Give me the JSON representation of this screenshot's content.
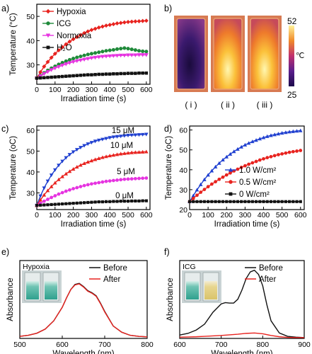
{
  "chart_data": [
    {
      "panel": "a)",
      "type": "line",
      "xlabel": "Irradiation time (s)",
      "ylabel": "Temperature (°C)",
      "xlim": [
        0,
        620
      ],
      "ylim": [
        22,
        55
      ],
      "xticks": [
        "0",
        "100",
        "200",
        "300",
        "400",
        "500",
        "600"
      ],
      "yticks": [
        "30",
        "40",
        "50"
      ],
      "legend_position": "top-left",
      "series": [
        {
          "name": "Hypoxia",
          "color": "#e8231f",
          "marker": "diamond",
          "x": [
            0,
            20,
            40,
            60,
            80,
            100,
            120,
            140,
            160,
            180,
            200,
            220,
            240,
            260,
            280,
            300,
            320,
            340,
            360,
            380,
            400,
            420,
            440,
            460,
            480,
            500,
            520,
            540,
            560,
            580,
            600
          ],
          "y": [
            24.5,
            27.0,
            29.3,
            31.2,
            33.0,
            34.6,
            36.0,
            37.3,
            38.5,
            39.6,
            40.6,
            41.5,
            42.3,
            43.1,
            43.8,
            44.4,
            44.9,
            45.4,
            45.8,
            46.2,
            46.5,
            46.8,
            47.1,
            47.3,
            47.5,
            47.7,
            47.8,
            47.9,
            48.0,
            48.1,
            48.2
          ]
        },
        {
          "name": "ICG",
          "color": "#1f8a3a",
          "marker": "circle",
          "x": [
            0,
            20,
            40,
            60,
            80,
            100,
            120,
            140,
            160,
            180,
            200,
            220,
            240,
            260,
            280,
            300,
            320,
            340,
            360,
            380,
            400,
            420,
            440,
            460,
            480,
            500,
            520,
            540,
            560,
            580,
            600
          ],
          "y": [
            24.5,
            25.6,
            26.7,
            27.7,
            28.6,
            29.4,
            30.2,
            30.9,
            31.5,
            32.1,
            32.6,
            33.1,
            33.5,
            33.9,
            34.3,
            34.6,
            34.9,
            35.2,
            35.5,
            35.8,
            36.0,
            36.2,
            36.5,
            36.7,
            36.9,
            36.7,
            36.4,
            36.1,
            35.8,
            35.6,
            35.5
          ]
        },
        {
          "name": "Normoxia",
          "color": "#e633e0",
          "marker": "triangle-down",
          "x": [
            0,
            20,
            40,
            60,
            80,
            100,
            120,
            140,
            160,
            180,
            200,
            220,
            240,
            260,
            280,
            300,
            320,
            340,
            360,
            380,
            400,
            420,
            440,
            460,
            480,
            500,
            520,
            540,
            560,
            580,
            600
          ],
          "y": [
            24.5,
            25.4,
            26.3,
            27.1,
            27.9,
            28.6,
            29.2,
            29.8,
            30.3,
            30.8,
            31.2,
            31.6,
            31.9,
            32.2,
            32.5,
            32.8,
            33.0,
            33.2,
            33.4,
            33.5,
            33.6,
            33.7,
            33.8,
            33.9,
            33.9,
            34.0,
            34.0,
            34.0,
            34.1,
            34.1,
            34.1
          ]
        },
        {
          "name": "H₂O",
          "color": "#111111",
          "marker": "square",
          "x": [
            0,
            20,
            40,
            60,
            80,
            100,
            120,
            140,
            160,
            180,
            200,
            220,
            240,
            260,
            280,
            300,
            320,
            340,
            360,
            380,
            400,
            420,
            440,
            460,
            480,
            500,
            520,
            540,
            560,
            580,
            600
          ],
          "y": [
            24.5,
            24.6,
            24.7,
            24.8,
            24.9,
            25.0,
            25.1,
            25.2,
            25.3,
            25.4,
            25.5,
            25.6,
            25.7,
            25.8,
            25.9,
            25.9,
            26.0,
            26.1,
            26.1,
            26.2,
            26.2,
            26.3,
            26.3,
            26.4,
            26.4,
            26.5,
            26.5,
            26.5,
            26.6,
            26.6,
            26.6
          ]
        }
      ]
    },
    {
      "panel": "b)",
      "type": "heatmap",
      "sample_labels": [
        "( i )",
        "( ii )",
        "( iii )"
      ],
      "colorbar": {
        "min": "25",
        "max": "52",
        "unit": "℃"
      },
      "sample_peak_fraction": [
        0.05,
        0.92,
        0.85
      ]
    },
    {
      "panel": "c)",
      "type": "line",
      "xlabel": "Irradiation time (s)",
      "ylabel": "Temperature (oC)",
      "xlim": [
        0,
        620
      ],
      "ylim": [
        22,
        62
      ],
      "xticks": [
        "0",
        "100",
        "200",
        "300",
        "400",
        "500",
        "600"
      ],
      "yticks": [
        "30",
        "40",
        "50",
        "60"
      ],
      "series": [
        {
          "name": "15 μM",
          "color": "#2040d0",
          "marker": "triangle-down",
          "x": [
            0,
            20,
            40,
            60,
            80,
            100,
            120,
            140,
            160,
            180,
            200,
            220,
            240,
            260,
            280,
            300,
            320,
            340,
            360,
            380,
            400,
            420,
            440,
            460,
            480,
            500,
            520,
            540,
            560,
            580,
            600
          ],
          "y": [
            24.0,
            28.5,
            32.3,
            35.6,
            38.5,
            41.0,
            43.2,
            45.1,
            46.8,
            48.3,
            49.6,
            50.7,
            51.7,
            52.6,
            53.4,
            54.1,
            54.7,
            55.2,
            55.6,
            56.0,
            56.4,
            56.7,
            56.9,
            57.1,
            57.3,
            57.5,
            57.6,
            57.7,
            57.8,
            57.9,
            58.0
          ]
        },
        {
          "name": "10 μM",
          "color": "#e8231f",
          "marker": "triangle-up",
          "x": [
            0,
            20,
            40,
            60,
            80,
            100,
            120,
            140,
            160,
            180,
            200,
            220,
            240,
            260,
            280,
            300,
            320,
            340,
            360,
            380,
            400,
            420,
            440,
            460,
            480,
            500,
            520,
            540,
            560,
            580,
            600
          ],
          "y": [
            24.0,
            26.6,
            29.0,
            31.1,
            33.0,
            34.8,
            36.4,
            37.8,
            39.1,
            40.3,
            41.4,
            42.4,
            43.3,
            44.1,
            44.8,
            45.4,
            46.0,
            46.5,
            47.0,
            47.4,
            47.8,
            48.1,
            48.4,
            48.7,
            48.9,
            49.1,
            49.3,
            49.4,
            49.5,
            49.6,
            49.7
          ]
        },
        {
          "name": "5 μM",
          "color": "#e633e0",
          "marker": "circle",
          "x": [
            0,
            20,
            40,
            60,
            80,
            100,
            120,
            140,
            160,
            180,
            200,
            220,
            240,
            260,
            280,
            300,
            320,
            340,
            360,
            380,
            400,
            420,
            440,
            460,
            480,
            500,
            520,
            540,
            560,
            580,
            600
          ],
          "y": [
            24.0,
            25.0,
            26.0,
            26.9,
            27.8,
            28.6,
            29.4,
            30.1,
            30.8,
            31.4,
            32.0,
            32.5,
            33.0,
            33.5,
            33.9,
            34.3,
            34.6,
            34.9,
            35.2,
            35.5,
            35.7,
            35.9,
            36.1,
            36.3,
            36.5,
            36.6,
            36.7,
            36.8,
            36.9,
            37.0,
            37.1
          ]
        },
        {
          "name": "0 μM",
          "color": "#111111",
          "marker": "square",
          "x": [
            0,
            20,
            40,
            60,
            80,
            100,
            120,
            140,
            160,
            180,
            200,
            220,
            240,
            260,
            280,
            300,
            320,
            340,
            360,
            380,
            400,
            420,
            440,
            460,
            480,
            500,
            520,
            540,
            560,
            580,
            600
          ],
          "y": [
            24.0,
            24.1,
            24.2,
            24.3,
            24.4,
            24.5,
            24.6,
            24.7,
            24.8,
            24.9,
            25.0,
            25.1,
            25.2,
            25.3,
            25.4,
            25.5,
            25.6,
            25.7,
            25.7,
            25.8,
            25.8,
            25.9,
            25.9,
            26.0,
            26.0,
            26.0,
            26.1,
            26.1,
            26.1,
            26.2,
            26.2
          ]
        }
      ]
    },
    {
      "panel": "d)",
      "type": "line",
      "xlabel": "Irradiation time (s)",
      "ylabel": "Temperature (oC)",
      "xlim": [
        0,
        620
      ],
      "ylim": [
        20,
        62
      ],
      "xticks": [
        "0",
        "100",
        "200",
        "300",
        "400",
        "500",
        "600"
      ],
      "yticks": [
        "20",
        "30",
        "40",
        "50",
        "60"
      ],
      "legend_position": "bottom-right",
      "series": [
        {
          "name": "1.0 W/cm²",
          "color": "#2040d0",
          "marker": "triangle-up",
          "x": [
            0,
            20,
            40,
            60,
            80,
            100,
            120,
            140,
            160,
            180,
            200,
            220,
            240,
            260,
            280,
            300,
            320,
            340,
            360,
            380,
            400,
            420,
            440,
            460,
            480,
            500,
            520,
            540,
            560,
            580,
            600
          ],
          "y": [
            24.0,
            27.0,
            29.9,
            32.6,
            35.1,
            37.4,
            39.5,
            41.5,
            43.3,
            45.0,
            46.5,
            47.9,
            49.2,
            50.4,
            51.5,
            52.5,
            53.4,
            54.2,
            54.9,
            55.6,
            56.2,
            56.8,
            57.3,
            57.7,
            58.1,
            58.5,
            58.8,
            59.1,
            59.3,
            59.5,
            59.7
          ]
        },
        {
          "name": "0.5 W/cm²",
          "color": "#e8231f",
          "marker": "circle",
          "x": [
            0,
            20,
            40,
            60,
            80,
            100,
            120,
            140,
            160,
            180,
            200,
            220,
            240,
            260,
            280,
            300,
            320,
            340,
            360,
            380,
            400,
            420,
            440,
            460,
            480,
            500,
            520,
            540,
            560,
            580,
            600
          ],
          "y": [
            24.0,
            25.6,
            27.2,
            28.7,
            30.1,
            31.5,
            32.8,
            34.0,
            35.2,
            36.3,
            37.4,
            38.4,
            39.4,
            40.3,
            41.2,
            42.0,
            42.8,
            43.5,
            44.2,
            44.9,
            45.5,
            46.1,
            46.6,
            47.1,
            47.6,
            48.0,
            48.4,
            48.8,
            49.1,
            49.4,
            49.7
          ]
        },
        {
          "name": "0 W/cm²",
          "color": "#111111",
          "marker": "square",
          "x": [
            0,
            20,
            40,
            60,
            80,
            100,
            120,
            140,
            160,
            180,
            200,
            220,
            240,
            260,
            280,
            300,
            320,
            340,
            360,
            380,
            400,
            420,
            440,
            460,
            480,
            500,
            520,
            540,
            560,
            580,
            600
          ],
          "y": [
            24.0,
            24.0,
            24.0,
            24.0,
            24.0,
            24.0,
            24.0,
            24.0,
            24.0,
            24.0,
            24.0,
            24.0,
            24.0,
            24.0,
            24.0,
            24.0,
            24.0,
            24.0,
            24.0,
            24.0,
            24.0,
            24.0,
            24.0,
            24.0,
            24.0,
            24.0,
            24.0,
            24.0,
            24.0,
            24.0,
            24.0
          ]
        }
      ]
    },
    {
      "panel": "e)",
      "type": "line",
      "title": "Hypoxia",
      "xlabel": "Wavelength (nm)",
      "ylabel": "Absorbance",
      "xlim": [
        500,
        800
      ],
      "xticks": [
        "500",
        "600",
        "700",
        "800"
      ],
      "legend_position": "top-right",
      "series": [
        {
          "name": "Before",
          "color": "#111111",
          "x": [
            500,
            520,
            540,
            560,
            580,
            600,
            610,
            620,
            630,
            640,
            650,
            660,
            670,
            680,
            690,
            700,
            720,
            740,
            760,
            780,
            800
          ],
          "y": [
            0.02,
            0.03,
            0.05,
            0.09,
            0.17,
            0.3,
            0.39,
            0.47,
            0.52,
            0.53,
            0.5,
            0.46,
            0.44,
            0.41,
            0.34,
            0.26,
            0.12,
            0.06,
            0.03,
            0.02,
            0.015
          ]
        },
        {
          "name": "After",
          "color": "#e8231f",
          "x": [
            500,
            520,
            540,
            560,
            580,
            600,
            610,
            620,
            630,
            640,
            650,
            660,
            670,
            680,
            690,
            700,
            720,
            740,
            760,
            780,
            800
          ],
          "y": [
            0.02,
            0.03,
            0.05,
            0.09,
            0.17,
            0.3,
            0.39,
            0.47,
            0.515,
            0.525,
            0.495,
            0.455,
            0.435,
            0.405,
            0.335,
            0.255,
            0.12,
            0.06,
            0.03,
            0.02,
            0.015
          ]
        }
      ]
    },
    {
      "panel": "f)",
      "type": "line",
      "title": "ICG",
      "xlabel": "Wavelength (nm)",
      "ylabel": "Absorbance",
      "xlim": [
        600,
        900
      ],
      "xticks": [
        "600",
        "700",
        "800",
        "900"
      ],
      "legend_position": "top-right",
      "series": [
        {
          "name": "Before",
          "color": "#111111",
          "x": [
            600,
            620,
            640,
            660,
            680,
            700,
            710,
            720,
            730,
            740,
            750,
            760,
            770,
            780,
            790,
            800,
            810,
            820,
            840,
            860,
            880,
            900
          ],
          "y": [
            0.08,
            0.12,
            0.2,
            0.34,
            0.62,
            0.82,
            0.85,
            0.84,
            0.84,
            0.93,
            1.15,
            1.42,
            1.58,
            1.62,
            1.52,
            1.25,
            0.8,
            0.42,
            0.13,
            0.05,
            0.03,
            0.02
          ]
        },
        {
          "name": "After",
          "color": "#e8231f",
          "x": [
            600,
            620,
            640,
            660,
            680,
            700,
            720,
            740,
            760,
            780,
            800,
            820,
            840,
            860,
            880,
            900
          ],
          "y": [
            0.03,
            0.035,
            0.04,
            0.05,
            0.06,
            0.07,
            0.085,
            0.1,
            0.12,
            0.13,
            0.11,
            0.07,
            0.04,
            0.025,
            0.02,
            0.02
          ]
        }
      ]
    }
  ]
}
